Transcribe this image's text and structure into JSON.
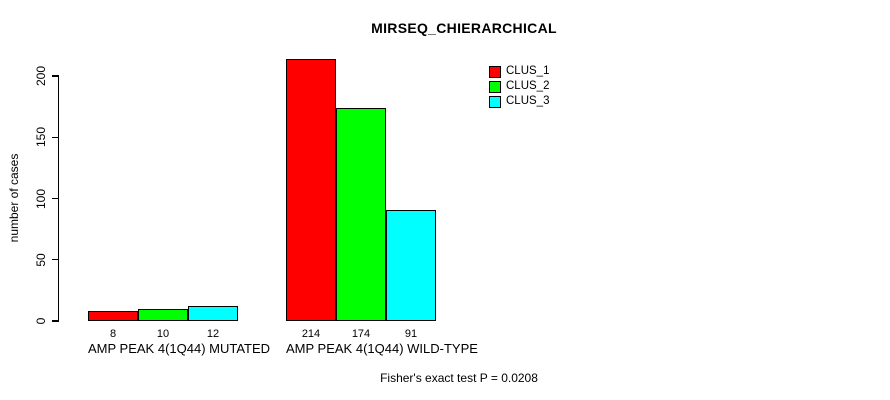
{
  "title": "MIRSEQ_CHIERARCHICAL",
  "footnote": "Fisher's exact test P = 0.0208",
  "y_axis": {
    "label": "number of cases",
    "ticks": [
      0,
      50,
      100,
      150,
      200
    ]
  },
  "legend": {
    "items": [
      {
        "label": "CLUS_1",
        "color": "#FF0000"
      },
      {
        "label": "CLUS_2",
        "color": "#00FF00"
      },
      {
        "label": "CLUS_3",
        "color": "#00FFFF"
      }
    ]
  },
  "chart_data": {
    "type": "bar",
    "grouped": true,
    "title": "MIRSEQ_CHIERARCHICAL",
    "xlabel": "",
    "ylabel": "number of cases",
    "categories": [
      "AMP PEAK 4(1Q44) MUTATED",
      "AMP PEAK 4(1Q44) WILD-TYPE"
    ],
    "series": [
      {
        "name": "CLUS_1",
        "color": "#FF0000",
        "values": [
          8,
          214
        ]
      },
      {
        "name": "CLUS_2",
        "color": "#00FF00",
        "values": [
          10,
          174
        ]
      },
      {
        "name": "CLUS_3",
        "color": "#00FFFF",
        "values": [
          12,
          91
        ]
      }
    ],
    "bar_labels": [
      [
        8,
        10,
        12
      ],
      [
        214,
        174,
        91
      ]
    ],
    "ylim": [
      0,
      215
    ],
    "yticks": [
      0,
      50,
      100,
      150,
      200
    ],
    "grid": false,
    "legend_position": "top-right",
    "annotation": "Fisher's exact test P = 0.0208"
  }
}
